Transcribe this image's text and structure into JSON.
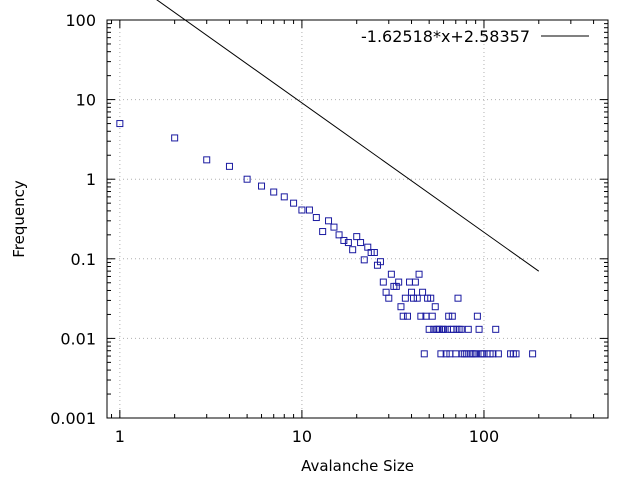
{
  "chart_data": {
    "type": "scatter",
    "xlabel": "Avalanche Size",
    "ylabel": "Frequency",
    "x_scale": "log",
    "y_scale": "log",
    "xlim": [
      0.85,
      480
    ],
    "ylim": [
      0.001,
      100
    ],
    "x_ticks": [
      1,
      10,
      100
    ],
    "x_tick_labels": [
      "1",
      "10",
      "100"
    ],
    "y_ticks": [
      0.001,
      0.01,
      0.1,
      1,
      10,
      100
    ],
    "y_tick_labels": [
      "0.001",
      "0.01",
      "0.1",
      "1",
      "10",
      "100"
    ],
    "grid": true,
    "legend": {
      "placement": "top-right",
      "label": "-1.62518*x+2.58357"
    },
    "colors": {
      "points": "#1a1aa0",
      "fit_line": "#000000",
      "grid": "#b0b0b0"
    },
    "series": [
      {
        "values": [
          [
            1,
            5.0
          ],
          [
            2,
            3.3
          ],
          [
            3,
            1.75
          ],
          [
            4,
            1.45
          ],
          [
            5,
            1.0
          ],
          [
            6,
            0.82
          ],
          [
            7,
            0.69
          ],
          [
            8,
            0.6
          ],
          [
            9,
            0.5
          ],
          [
            10,
            0.41
          ],
          [
            11,
            0.41
          ],
          [
            12,
            0.33
          ],
          [
            13,
            0.22
          ],
          [
            14,
            0.3
          ],
          [
            15,
            0.25
          ],
          [
            16,
            0.2
          ],
          [
            17,
            0.17
          ],
          [
            18,
            0.16
          ],
          [
            19,
            0.13
          ],
          [
            20,
            0.19
          ],
          [
            21,
            0.16
          ],
          [
            22,
            0.097
          ],
          [
            23,
            0.14
          ],
          [
            24,
            0.12
          ],
          [
            25,
            0.12
          ],
          [
            26,
            0.083
          ],
          [
            27,
            0.092
          ],
          [
            28,
            0.051
          ],
          [
            29,
            0.038
          ],
          [
            30,
            0.032
          ],
          [
            31,
            0.064
          ],
          [
            32,
            0.045
          ],
          [
            33,
            0.045
          ],
          [
            34,
            0.051
          ],
          [
            35,
            0.025
          ],
          [
            36,
            0.019
          ],
          [
            37,
            0.032
          ],
          [
            38,
            0.019
          ],
          [
            39,
            0.051
          ],
          [
            40,
            0.038
          ],
          [
            41,
            0.032
          ],
          [
            42,
            0.051
          ],
          [
            43,
            0.032
          ],
          [
            44,
            0.064
          ],
          [
            45,
            0.019
          ],
          [
            46,
            0.038
          ],
          [
            47,
            0.0064
          ],
          [
            48,
            0.019
          ],
          [
            49,
            0.032
          ],
          [
            50,
            0.013
          ],
          [
            51,
            0.032
          ],
          [
            52,
            0.019
          ],
          [
            53,
            0.013
          ],
          [
            54,
            0.025
          ],
          [
            55,
            0.013
          ],
          [
            56,
            0.013
          ],
          [
            57,
            0.013
          ],
          [
            58,
            0.0064
          ],
          [
            59,
            0.013
          ],
          [
            60,
            0.013
          ],
          [
            62,
            0.0064
          ],
          [
            63,
            0.013
          ],
          [
            64,
            0.019
          ],
          [
            65,
            0.0064
          ],
          [
            66,
            0.013
          ],
          [
            67,
            0.019
          ],
          [
            68,
            0.013
          ],
          [
            70,
            0.0064
          ],
          [
            71,
            0.013
          ],
          [
            72,
            0.032
          ],
          [
            73,
            0.013
          ],
          [
            75,
            0.013
          ],
          [
            76,
            0.0064
          ],
          [
            78,
            0.0064
          ],
          [
            80,
            0.0064
          ],
          [
            82,
            0.013
          ],
          [
            84,
            0.0064
          ],
          [
            86,
            0.0064
          ],
          [
            88,
            0.0064
          ],
          [
            90,
            0.0064
          ],
          [
            92,
            0.019
          ],
          [
            94,
            0.013
          ],
          [
            96,
            0.0064
          ],
          [
            98,
            0.0064
          ],
          [
            100,
            0.0064
          ],
          [
            104,
            0.0064
          ],
          [
            108,
            0.0064
          ],
          [
            112,
            0.0064
          ],
          [
            116,
            0.013
          ],
          [
            120,
            0.0064
          ],
          [
            140,
            0.0064
          ],
          [
            145,
            0.0064
          ],
          [
            150,
            0.0064
          ],
          [
            185,
            0.0064
          ]
        ]
      }
    ],
    "fit_line": {
      "slope": -1.62518,
      "intercept": 2.58357,
      "x_range": [
        1,
        200
      ]
    }
  }
}
